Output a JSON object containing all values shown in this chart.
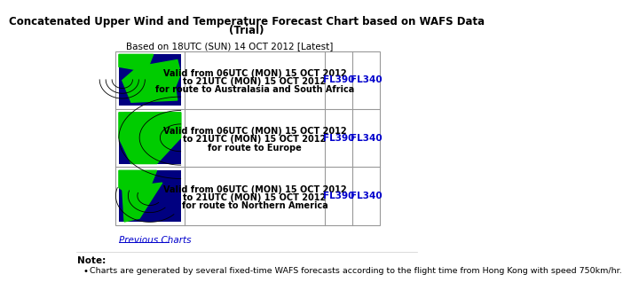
{
  "title_line1": "Concatenated Upper Wind and Temperature Forecast Chart based on WAFS Data",
  "title_line2": "(Trial)",
  "based_on": "Based on 18UTC (SUN) 14 OCT 2012 [Latest]",
  "background_color": "#ffffff",
  "table_border_color": "#999999",
  "rows": [
    {
      "description_line1": "Valid from 06UTC (MON) 15 OCT 2012",
      "description_line2": "to 21UTC (MON) 15 OCT 2012",
      "description_line3": "for route to Australasia and South Africa",
      "link1": "FL390",
      "link2": "FL340"
    },
    {
      "description_line1": "Valid from 06UTC (MON) 15 OCT 2012",
      "description_line2": "to 21UTC (MON) 15 OCT 2012",
      "description_line3": "for route to Europe",
      "link1": "FL390",
      "link2": "FL340"
    },
    {
      "description_line1": "Valid from 06UTC (MON) 15 OCT 2012",
      "description_line2": "to 21UTC (MON) 15 OCT 2012",
      "description_line3": "for route to Northern America",
      "link1": "FL390",
      "link2": "FL340"
    }
  ],
  "previous_charts_text": "Previous Charts",
  "note_label": "Note:",
  "note_bullet": "Charts are generated by several fixed-time WAFS forecasts according to the flight time from Hong Kong with speed 750km/hr.",
  "link_color": "#0000cc",
  "title_color": "#000000",
  "text_color": "#000000",
  "map_colors": {
    "ocean": "#000080",
    "land": "#00cc00",
    "lines": "#000000"
  }
}
